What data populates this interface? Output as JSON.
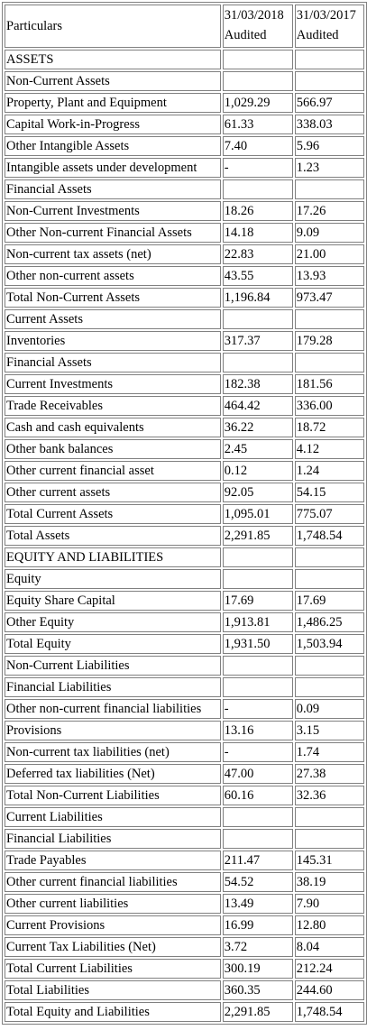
{
  "header": {
    "particulars": "Particulars",
    "col1_date": "31/03/2018",
    "col1_status": "Audited",
    "col2_date": "31/03/2017",
    "col2_status": "Audited"
  },
  "rows": [
    {
      "label": "ASSETS",
      "v2018": "",
      "v2017": ""
    },
    {
      "label": "Non-Current Assets",
      "v2018": "",
      "v2017": ""
    },
    {
      "label": "Property, Plant and Equipment",
      "v2018": "1,029.29",
      "v2017": "566.97"
    },
    {
      "label": "Capital Work-in-Progress",
      "v2018": "61.33",
      "v2017": "338.03"
    },
    {
      "label": "Other Intangible Assets",
      "v2018": "7.40",
      "v2017": "5.96"
    },
    {
      "label": "Intangible assets under development",
      "v2018": "-",
      "v2017": "1.23"
    },
    {
      "label": "Financial Assets",
      "v2018": "",
      "v2017": ""
    },
    {
      "label": "Non-Current Investments",
      "v2018": "18.26",
      "v2017": "17.26"
    },
    {
      "label": "Other Non-current Financial Assets",
      "v2018": "14.18",
      "v2017": "9.09"
    },
    {
      "label": "Non-current tax assets (net)",
      "v2018": "22.83",
      "v2017": "21.00"
    },
    {
      "label": "Other non-current assets",
      "v2018": "43.55",
      "v2017": "13.93"
    },
    {
      "label": "Total Non-Current Assets",
      "v2018": "1,196.84",
      "v2017": "973.47"
    },
    {
      "label": "Current Assets",
      "v2018": "",
      "v2017": ""
    },
    {
      "label": "Inventories",
      "v2018": "317.37",
      "v2017": "179.28"
    },
    {
      "label": "Financial Assets",
      "v2018": "",
      "v2017": ""
    },
    {
      "label": "Current Investments",
      "v2018": "182.38",
      "v2017": "181.56"
    },
    {
      "label": "Trade Receivables",
      "v2018": "464.42",
      "v2017": "336.00"
    },
    {
      "label": "Cash and cash equivalents",
      "v2018": "36.22",
      "v2017": "18.72"
    },
    {
      "label": "Other bank balances",
      "v2018": "2.45",
      "v2017": "4.12"
    },
    {
      "label": "Other current financial asset",
      "v2018": "0.12",
      "v2017": "1.24"
    },
    {
      "label": "Other current assets",
      "v2018": "92.05",
      "v2017": "54.15"
    },
    {
      "label": "Total Current Assets",
      "v2018": "1,095.01",
      "v2017": "775.07"
    },
    {
      "label": "Total Assets",
      "v2018": "2,291.85",
      "v2017": "1,748.54"
    },
    {
      "label": "EQUITY AND LIABILITIES",
      "v2018": "",
      "v2017": ""
    },
    {
      "label": "Equity",
      "v2018": "",
      "v2017": ""
    },
    {
      "label": "Equity Share Capital",
      "v2018": "17.69",
      "v2017": "17.69"
    },
    {
      "label": "Other Equity",
      "v2018": "1,913.81",
      "v2017": "1,486.25"
    },
    {
      "label": "Total Equity",
      "v2018": "1,931.50",
      "v2017": "1,503.94"
    },
    {
      "label": "Non-Current Liabilities",
      "v2018": "",
      "v2017": ""
    },
    {
      "label": "Financial Liabilities",
      "v2018": "",
      "v2017": ""
    },
    {
      "label": "Other non-current financial liabilities",
      "v2018": "-",
      "v2017": "0.09"
    },
    {
      "label": "Provisions",
      "v2018": "13.16",
      "v2017": "3.15"
    },
    {
      "label": "Non-current tax liabilities (net)",
      "v2018": "-",
      "v2017": "1.74"
    },
    {
      "label": "Deferred tax liabilities (Net)",
      "v2018": "47.00",
      "v2017": "27.38"
    },
    {
      "label": "Total Non-Current Liabilities",
      "v2018": "60.16",
      "v2017": "32.36"
    },
    {
      "label": "Current Liabilities",
      "v2018": "",
      "v2017": ""
    },
    {
      "label": "Financial Liabilities",
      "v2018": "",
      "v2017": ""
    },
    {
      "label": "Trade Payables",
      "v2018": "211.47",
      "v2017": "145.31"
    },
    {
      "label": "Other current financial liabilities",
      "v2018": "54.52",
      "v2017": "38.19"
    },
    {
      "label": "Other current liabilities",
      "v2018": "13.49",
      "v2017": "7.90"
    },
    {
      "label": "Current Provisions",
      "v2018": "16.99",
      "v2017": "12.80"
    },
    {
      "label": "Current Tax Liabilities (Net)",
      "v2018": "3.72",
      "v2017": "8.04"
    },
    {
      "label": "Total Current Liabilities",
      "v2018": "300.19",
      "v2017": "212.24"
    },
    {
      "label": "Total Liabilities",
      "v2018": "360.35",
      "v2017": "244.60"
    },
    {
      "label": "Total Equity and Liabilities",
      "v2018": "2,291.85",
      "v2017": "1,748.54"
    }
  ]
}
